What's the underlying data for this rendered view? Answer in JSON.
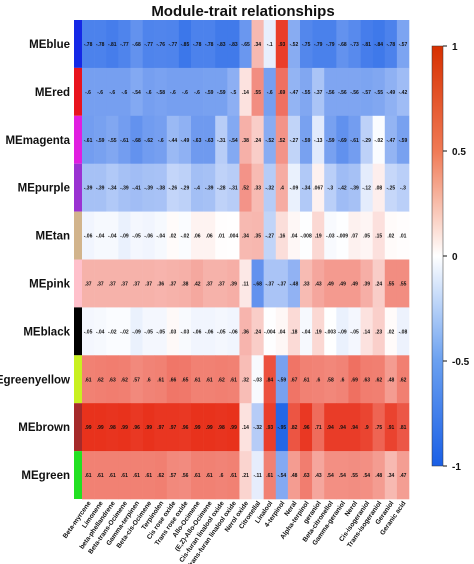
{
  "chart_data": {
    "type": "heatmap",
    "title": "Module-trait relationships",
    "rows": [
      "MEblue",
      "MEred",
      "MEmagenta",
      "MEpurple",
      "MEtan",
      "MEpink",
      "MEblack",
      "MEgreenyellow",
      "MEbrown",
      "MEgreen"
    ],
    "row_colors": [
      "#1428e6",
      "#e8141e",
      "#e01ee0",
      "#9a32d2",
      "#d2b48c",
      "#ffc0cb",
      "#000000",
      "#c8f020",
      "#a52a2a",
      "#22e022"
    ],
    "columns": [
      "Beta-myrcene",
      "Limonene",
      "beta-phellandrene",
      "Beta-trans-Ocimene",
      "Gamma-terpinen",
      "Beta-cis-Ocimene",
      "Terpinolen",
      "Cis rose oxide",
      "Trans rose oxide",
      "Allo-Ocimene",
      "(E,Z)-Allo-Ocimene",
      "Cis-furan linalool oxide",
      "Trans-furan linalool oxide",
      "Nerol oxide",
      "Citronellal",
      "Linalool",
      "4-terpinol",
      "Neral",
      "Alpha-terpinol",
      "geraniol",
      "Beta-citronellol",
      "Gamma-geraniol",
      "Nerol",
      "Cis-isogeraniol",
      "Trans-isogeraniol",
      "Geraniol",
      "Geranic acid"
    ],
    "values": [
      [
        -0.78,
        -0.78,
        -0.81,
        -0.77,
        -0.68,
        -0.77,
        -0.76,
        -0.77,
        -0.85,
        -0.78,
        -0.78,
        -0.83,
        -0.83,
        -0.65,
        0.34,
        -0.1,
        0.93,
        -0.52,
        -0.75,
        -0.79,
        -0.79,
        -0.68,
        -0.73,
        -0.81,
        -0.84,
        -0.78,
        -0.57
      ],
      [
        -0.6,
        -0.6,
        -0.6,
        -0.6,
        -0.54,
        -0.6,
        -0.58,
        -0.6,
        -0.6,
        -0.6,
        -0.59,
        -0.59,
        -0.5,
        0.14,
        0.55,
        -0.6,
        0.69,
        -0.47,
        -0.55,
        -0.37,
        -0.56,
        -0.56,
        -0.56,
        -0.57,
        -0.55,
        -0.49,
        -0.42
      ],
      [
        -0.61,
        -0.59,
        -0.55,
        -0.61,
        -0.68,
        -0.62,
        -0.6,
        -0.44,
        -0.49,
        -0.63,
        -0.63,
        -0.31,
        -0.54,
        0.38,
        0.24,
        -0.52,
        0.52,
        -0.27,
        -0.59,
        -0.13,
        -0.59,
        -0.69,
        -0.61,
        -0.29,
        -0.02,
        -0.47,
        -0.59
      ],
      [
        -0.39,
        -0.39,
        -0.34,
        -0.39,
        -0.41,
        -0.39,
        -0.38,
        -0.26,
        -0.29,
        -0.4,
        -0.39,
        -0.28,
        -0.31,
        0.52,
        0.33,
        -0.32,
        0.4,
        -0.09,
        -0.34,
        0.067,
        -0.3,
        -0.42,
        -0.39,
        -0.12,
        0.08,
        -0.25,
        -0.3
      ],
      [
        -0.06,
        -0.04,
        -0.04,
        -0.09,
        -0.05,
        -0.06,
        -0.04,
        0.02,
        -0.02,
        0.06,
        0.06,
        0.01,
        0.004,
        0.34,
        0.35,
        -0.27,
        0.16,
        0.04,
        -0.008,
        0.19,
        -0.03,
        -0.009,
        0.07,
        0.05,
        0.15,
        0.02,
        0.01
      ],
      [
        0.37,
        0.37,
        0.37,
        0.37,
        0.37,
        0.37,
        0.36,
        0.37,
        0.38,
        0.42,
        0.37,
        0.37,
        0.39,
        0.11,
        -0.68,
        -0.37,
        -0.37,
        -0.48,
        0.33,
        0.43,
        0.49,
        0.49,
        0.49,
        0.39,
        0.24,
        0.55,
        0.55
      ],
      [
        -0.05,
        -0.04,
        -0.02,
        -0.02,
        -0.09,
        -0.05,
        -0.05,
        0.03,
        -0.03,
        -0.06,
        -0.06,
        -0.05,
        -0.06,
        0.36,
        0.24,
        -0.004,
        0.04,
        0.18,
        -0.04,
        0.19,
        -0.003,
        -0.09,
        -0.05,
        0.14,
        0.23,
        0.02,
        -0.08
      ],
      [
        0.61,
        0.62,
        0.63,
        0.62,
        0.57,
        0.6,
        0.61,
        0.66,
        0.65,
        0.61,
        0.61,
        0.62,
        0.61,
        0.32,
        -0.03,
        0.84,
        -0.59,
        0.67,
        0.61,
        0.6,
        0.58,
        0.6,
        0.69,
        0.63,
        0.62,
        0.48,
        0.62
      ],
      [
        0.99,
        0.99,
        0.98,
        0.99,
        0.96,
        0.99,
        0.97,
        0.97,
        0.96,
        0.99,
        0.99,
        0.98,
        0.99,
        0.14,
        -0.32,
        0.93,
        -0.95,
        0.82,
        0.96,
        0.71,
        0.94,
        0.94,
        0.94,
        0.9,
        0.75,
        0.91,
        0.81
      ],
      [
        0.61,
        0.61,
        0.61,
        0.61,
        0.61,
        0.61,
        0.62,
        0.57,
        0.56,
        0.61,
        0.61,
        0.6,
        0.61,
        0.21,
        -0.11,
        0.61,
        -0.54,
        0.48,
        0.63,
        0.43,
        0.54,
        0.54,
        0.55,
        0.54,
        0.48,
        0.34,
        0.47
      ]
    ],
    "colorbar": {
      "range": [
        -1,
        1
      ],
      "ticks": [
        "1",
        "0.5",
        "0",
        "-0.5",
        "-1"
      ],
      "low_color": "#1a5fe6",
      "mid_color": "#ffffff",
      "high_color": "#e8301a"
    }
  }
}
